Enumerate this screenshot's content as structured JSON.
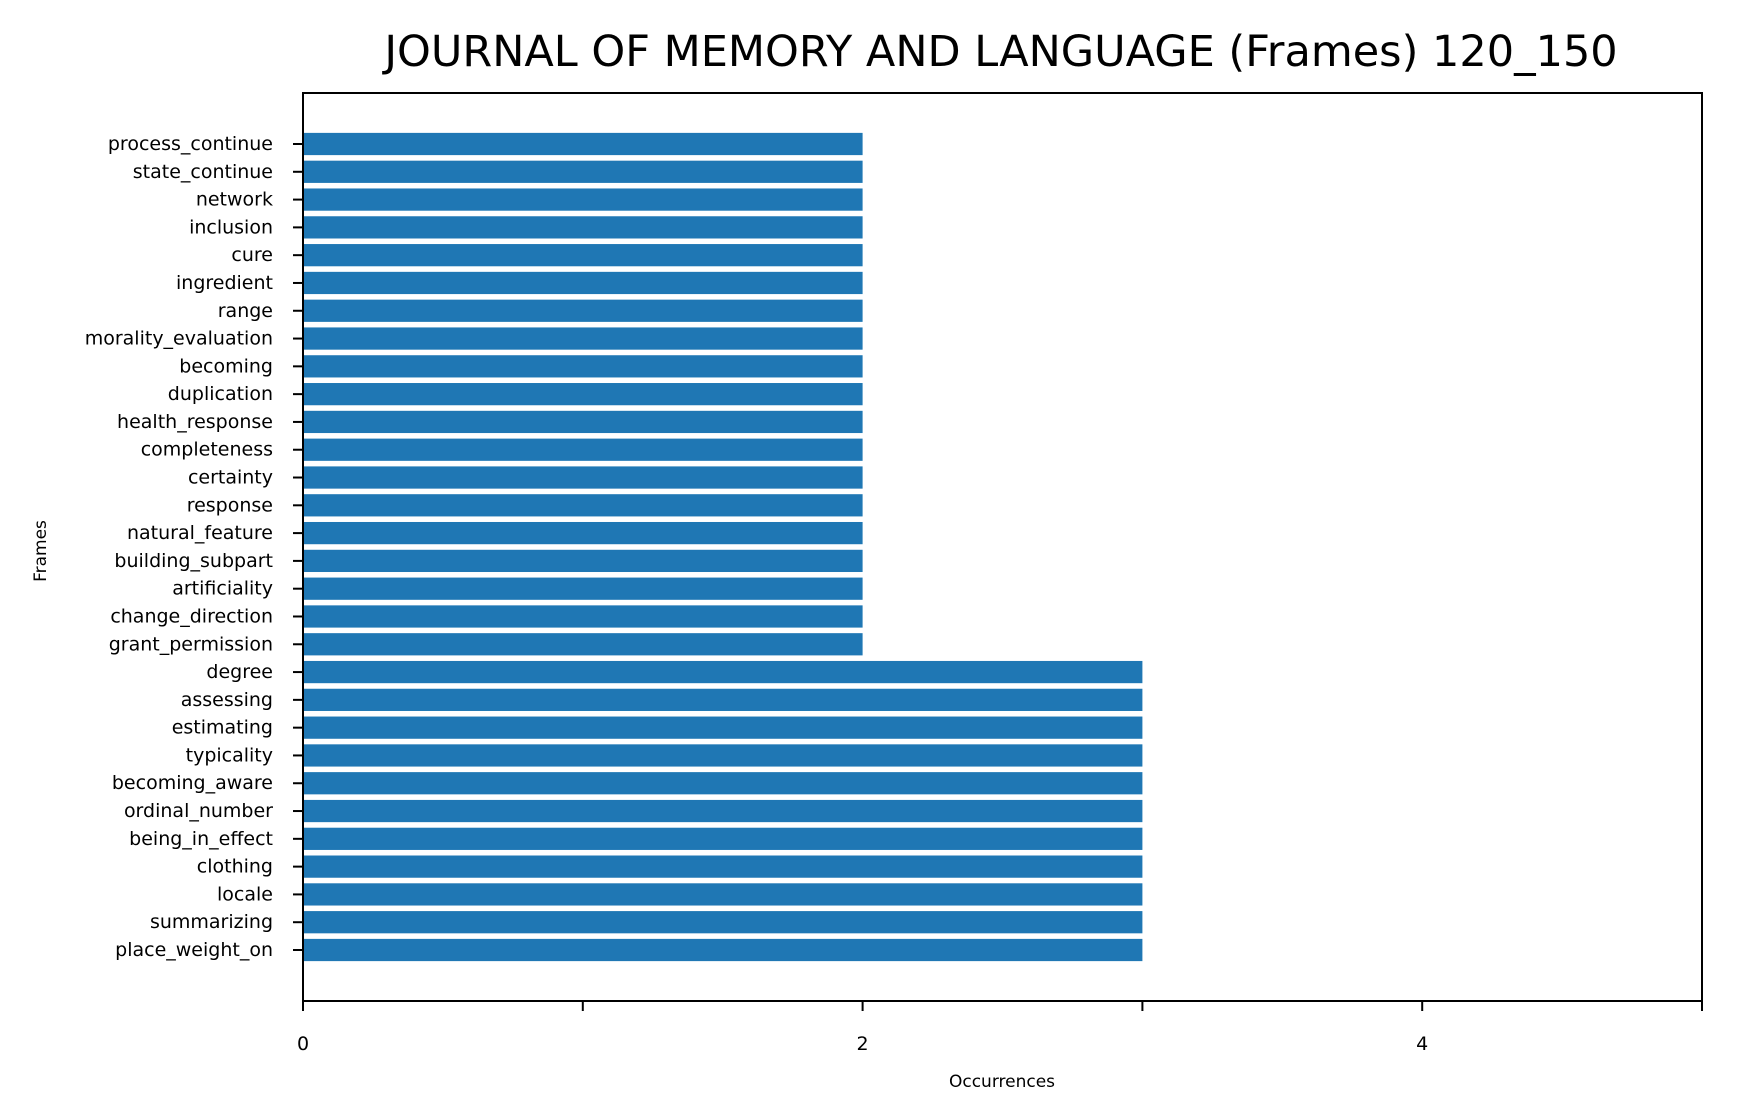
{
  "chart_data": {
    "type": "bar",
    "orientation": "horizontal",
    "title": "JOURNAL OF MEMORY AND LANGUAGE (Frames) 120_150",
    "xlabel": "Occurrences",
    "ylabel": "Frames",
    "xlim": [
      0,
      5
    ],
    "x_ticks": [
      0,
      1,
      2,
      3,
      4,
      5
    ],
    "x_tick_labels": [
      "0",
      "",
      "2",
      "",
      "4",
      ""
    ],
    "categories": [
      "process_continue",
      "state_continue",
      "network",
      "inclusion",
      "cure",
      "ingredient",
      "range",
      "morality_evaluation",
      "becoming",
      "duplication",
      "health_response",
      "completeness",
      "certainty",
      "response",
      "natural_feature",
      "building_subpart",
      "artificiality",
      "change_direction",
      "grant_permission",
      "degree",
      "assessing",
      "estimating",
      "typicality",
      "becoming_aware",
      "ordinal_number",
      "being_in_effect",
      "clothing",
      "locale",
      "summarizing",
      "place_weight_on"
    ],
    "values": [
      2,
      2,
      2,
      2,
      2,
      2,
      2,
      2,
      2,
      2,
      2,
      2,
      2,
      2,
      2,
      2,
      2,
      2,
      2,
      3,
      3,
      3,
      3,
      3,
      3,
      3,
      3,
      3,
      3,
      3
    ],
    "bar_color": "#1f77b4",
    "grid": false,
    "legend": "none"
  }
}
